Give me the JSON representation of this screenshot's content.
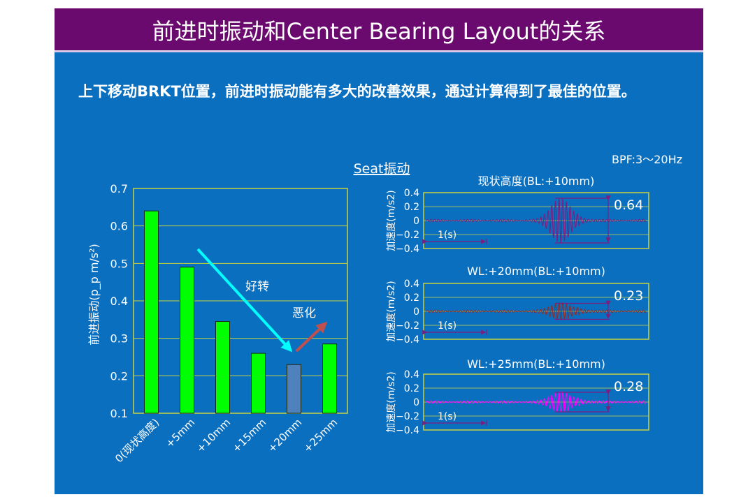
{
  "slide": {
    "title": "前进时振动和Center Bearing Layout的关系",
    "subtitle": "上下移动BRKT位置，前进时振动能有多大的改善效果，通过计算得到了最佳的位置。"
  },
  "chart_data": [
    {
      "type": "bar",
      "title": "",
      "ylabel": "前进振动(p_p m/s²)",
      "ylim": [
        0.1,
        0.7
      ],
      "yticks": [
        "0.1",
        "0.2",
        "0.3",
        "0.4",
        "0.5",
        "0.6",
        "0.7"
      ],
      "categories": [
        "0(现状高度)",
        "+5mm",
        "+10mm",
        "+15mm",
        "+20mm",
        "+25mm"
      ],
      "values": [
        0.64,
        0.49,
        0.345,
        0.26,
        0.23,
        0.285
      ],
      "highlight_index": 4,
      "colors": {
        "bar": "#00ff00",
        "highlight": "#4f81bd",
        "grid": "#c8d23c"
      },
      "annotations": [
        {
          "text": "好转",
          "color": "#00ffff"
        },
        {
          "text": "恶化",
          "color": "#c0504d"
        }
      ]
    },
    {
      "type": "line",
      "title": "Seat振动",
      "note": "BPF:3～20Hz",
      "ylabel": "加速度(m/s2)",
      "yticks": [
        "0.4",
        "0.2",
        "0",
        "−0.2",
        "−0.4"
      ],
      "ylim": [
        -0.4,
        0.4
      ],
      "time_label": "1(s)",
      "panels": [
        {
          "label": "现状高度(BL:+10mm)",
          "peak_to_peak": "0.64",
          "amplitude": 0.32,
          "color": "#7b1f7f"
        },
        {
          "label": "WL:+20mm(BL:+10mm)",
          "peak_to_peak": "0.23",
          "amplitude": 0.115,
          "color": "#8b2d2d"
        },
        {
          "label": "WL:+25mm(BL:+10mm)",
          "peak_to_peak": "0.28",
          "amplitude": 0.14,
          "color": "#ff00ff"
        }
      ]
    }
  ]
}
